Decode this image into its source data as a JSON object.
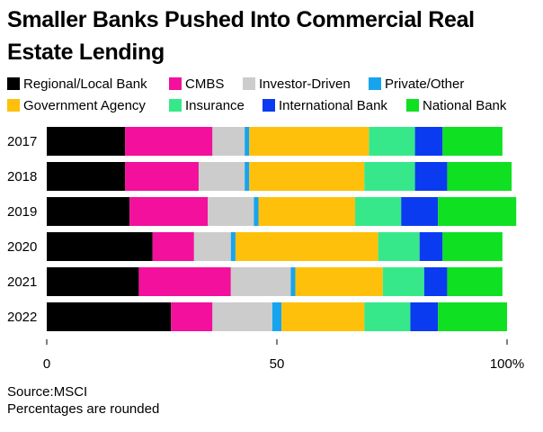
{
  "chart_data": {
    "type": "bar",
    "orientation": "horizontal",
    "stacked": true,
    "title": "Smaller Banks Pushed Into Commercial Real Estate Lending",
    "categories": [
      "2017",
      "2018",
      "2019",
      "2020",
      "2021",
      "2022"
    ],
    "series": [
      {
        "name": "Regional/Local Bank",
        "color": "#000000",
        "values": [
          17,
          17,
          18,
          23,
          20,
          27
        ]
      },
      {
        "name": "CMBS",
        "color": "#f2109c",
        "values": [
          19,
          16,
          17,
          9,
          20,
          9
        ]
      },
      {
        "name": "Investor-Driven",
        "color": "#cccccc",
        "values": [
          7,
          10,
          10,
          8,
          13,
          13
        ]
      },
      {
        "name": "Private/Other",
        "color": "#17a4ef",
        "values": [
          1,
          1,
          1,
          1,
          1,
          2
        ]
      },
      {
        "name": "Government Agency",
        "color": "#fec00a",
        "values": [
          26,
          25,
          21,
          31,
          19,
          18
        ]
      },
      {
        "name": "Insurance",
        "color": "#37e88a",
        "values": [
          10,
          11,
          10,
          9,
          9,
          10
        ]
      },
      {
        "name": "International Bank",
        "color": "#0b3bf0",
        "values": [
          6,
          7,
          8,
          5,
          5,
          6
        ]
      },
      {
        "name": "National Bank",
        "color": "#0fe022",
        "values": [
          13,
          14,
          17,
          13,
          12,
          15
        ]
      }
    ],
    "x_ticks": [
      0,
      50,
      100
    ],
    "x_tick_labels": [
      "0",
      "50",
      "100%"
    ],
    "xlim": [
      0,
      100
    ],
    "grid": false,
    "legend": "top"
  },
  "footer": {
    "source": "Source:MSCI",
    "note": "Percentages are rounded"
  }
}
